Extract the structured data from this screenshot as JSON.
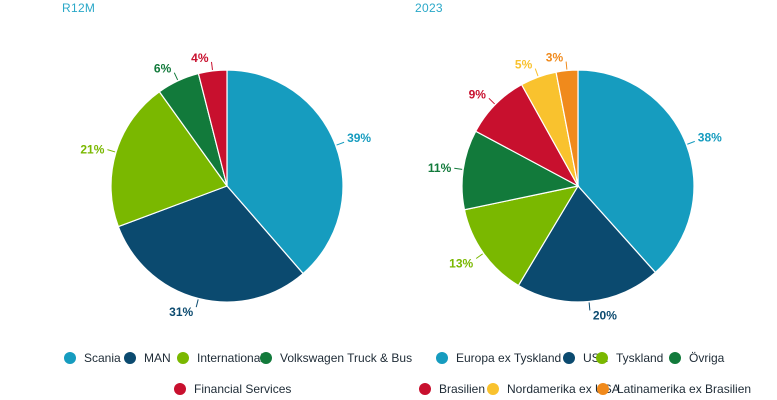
{
  "chart_data": [
    {
      "type": "pie",
      "title": "R12M",
      "title_color": "#2aa8c8",
      "slices": [
        {
          "label": "Scania",
          "value": 39,
          "display": "39%",
          "color": "#169cbf"
        },
        {
          "label": "MAN",
          "value": 31,
          "display": "31%",
          "color": "#0b4a6f"
        },
        {
          "label": "International",
          "value": 21,
          "display": "21%",
          "color": "#7ab800"
        },
        {
          "label": "Volkswagen Truck & Bus",
          "value": 6,
          "display": "6%",
          "color": "#127a3b"
        },
        {
          "label": "Financial Services",
          "value": 4,
          "display": "4%",
          "color": "#c8102e"
        }
      ]
    },
    {
      "type": "pie",
      "title": "2023",
      "title_color": "#2aa8c8",
      "slices": [
        {
          "label": "Europa ex Tyskland",
          "value": 38,
          "display": "38%",
          "color": "#169cbf"
        },
        {
          "label": "USA",
          "value": 20,
          "display": "20%",
          "color": "#0b4a6f"
        },
        {
          "label": "Tyskland",
          "value": 13,
          "display": "13%",
          "color": "#7ab800"
        },
        {
          "label": "Övriga",
          "value": 11,
          "display": "11%",
          "color": "#127a3b"
        },
        {
          "label": "Brasilien",
          "value": 9,
          "display": "9%",
          "color": "#c8102e"
        },
        {
          "label": "Nordamerika ex USA",
          "value": 5,
          "display": "5%",
          "color": "#f9c22e"
        },
        {
          "label": "Latinamerika ex Brasilien",
          "value": 3,
          "display": "3%",
          "color": "#f08a1c"
        }
      ]
    }
  ]
}
